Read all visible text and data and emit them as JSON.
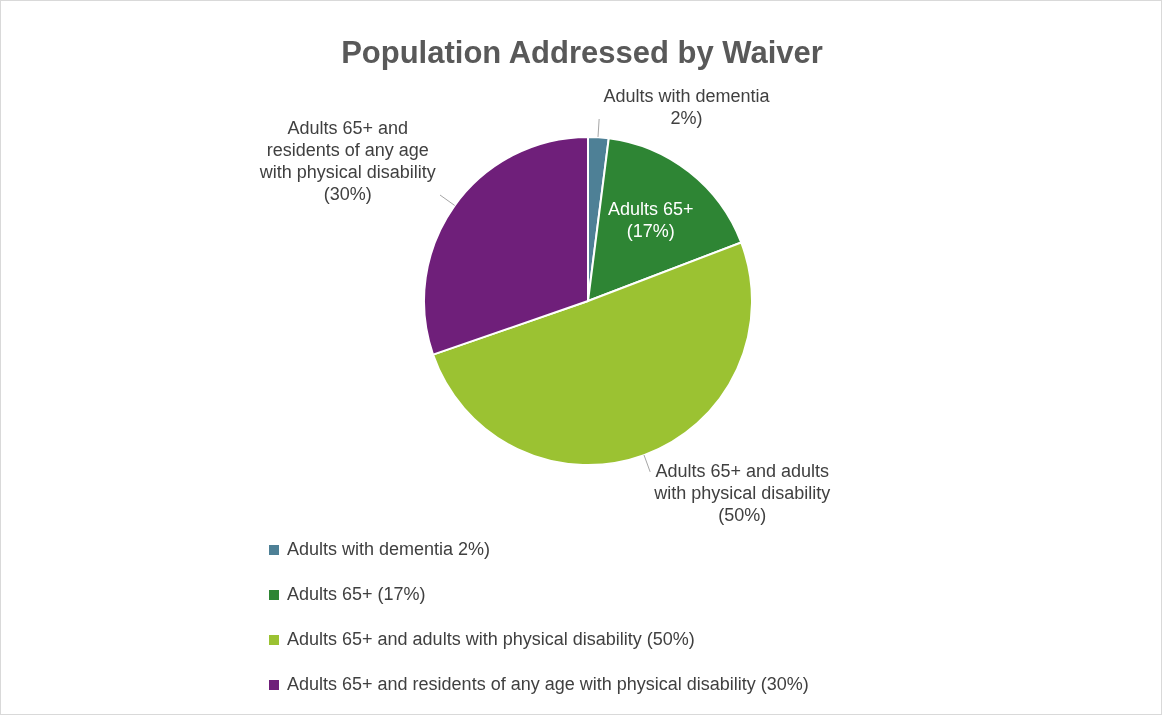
{
  "chart_data": {
    "type": "pie",
    "title": "Population Addressed by Waiver",
    "categories": [
      "Adults with dementia 2%)",
      "Adults 65+ (17%)",
      "Adults 65+ and adults with physical disability (50%)",
      "Adults 65+ and residents of any age with physical disability (30%)"
    ],
    "values": [
      2,
      17,
      50,
      30
    ],
    "colors": [
      "#4e8096",
      "#2e8534",
      "#9bc232",
      "#6f1f7a"
    ],
    "value_labels": [
      "Adults with dementia 2%)",
      "Adults 65+ (17%)",
      "Adults 65+ and adults with physical disability (50%)",
      "Adults 65+ and residents of any age with physical disability (30%)"
    ],
    "legend": "bottom"
  }
}
